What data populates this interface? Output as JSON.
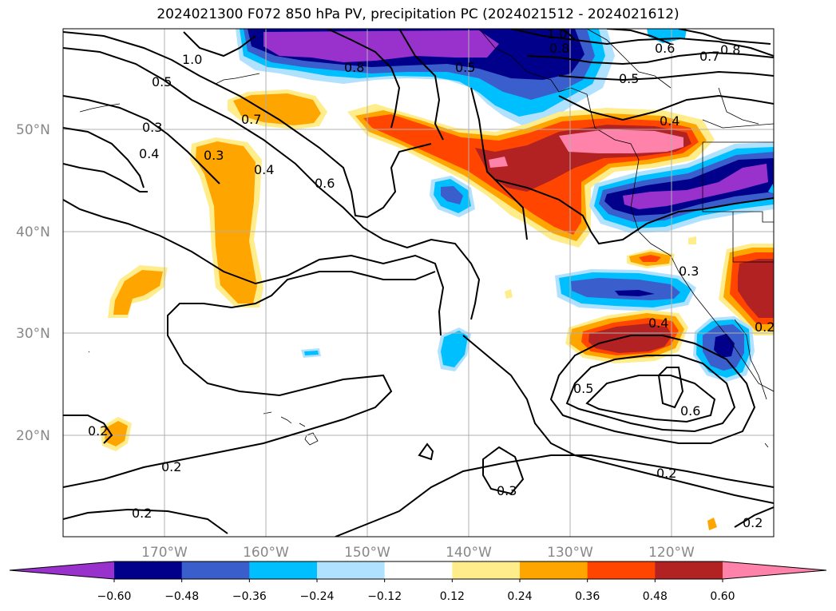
{
  "title": "2024021300 F072 850 hPa PV, precipitation PC (2024021512 - 2024021612)",
  "map": {
    "lat_ticks": [
      "50°N",
      "40°N",
      "30°N",
      "20°N"
    ],
    "lon_ticks": [
      "170°W",
      "160°W",
      "150°W",
      "140°W",
      "130°W",
      "120°W"
    ],
    "grid": true
  },
  "contours": {
    "labels": [
      "1.0",
      "0.5",
      "0.3",
      "0.4",
      "0.7",
      "0.3",
      "0.4",
      "0.6",
      "0.8",
      "0.5",
      "1.0",
      "0.8",
      "0.6",
      "0.7",
      "0.8",
      "0.5",
      "0.4",
      "0.3",
      "0.4",
      "0.5",
      "0.6",
      "0.2",
      "0.2",
      "0.2",
      "0.3",
      "0.2",
      "0.2",
      "0.2"
    ]
  },
  "colorbar": {
    "colors": [
      "#9932CC",
      "#00008B",
      "#3A5FCD",
      "#00BFFF",
      "#B0E2FF",
      "#FFFFFF",
      "#FFEC8B",
      "#FFA500",
      "#FF4500",
      "#B22222",
      "#FF82AB"
    ],
    "tick_labels": [
      "−0.60",
      "−0.48",
      "−0.36",
      "−0.24",
      "−0.12",
      "0.12",
      "0.24",
      "0.36",
      "0.48",
      "0.60"
    ]
  }
}
